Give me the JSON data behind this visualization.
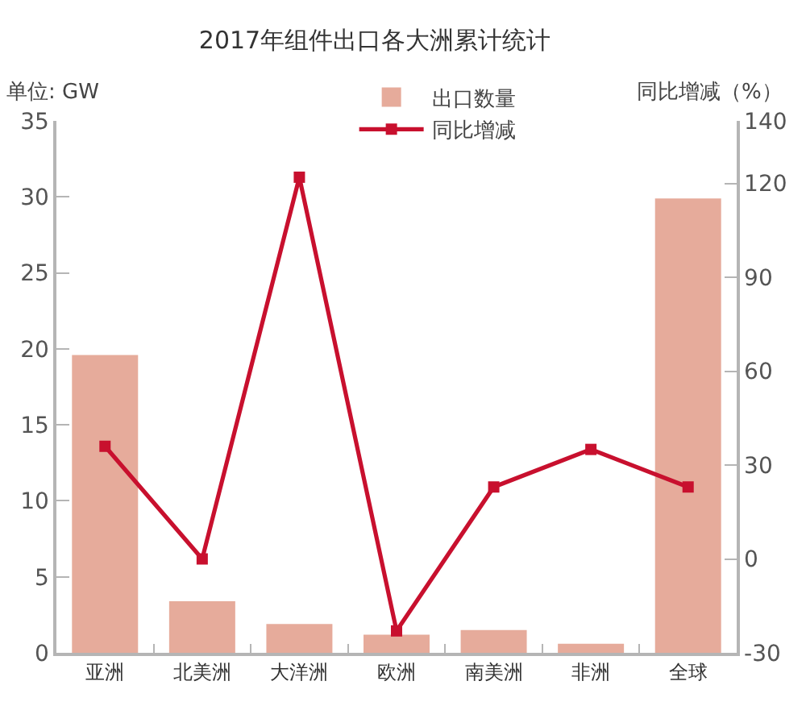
{
  "chart_data": {
    "type": "bar",
    "title": "2017年组件出口各大洲累计统计",
    "ylabel": "单位: GW",
    "y2label": "同比增减（%）",
    "categories": [
      "亚洲",
      "北美洲",
      "大洋洲",
      "欧洲",
      "南美洲",
      "非洲",
      "全球"
    ],
    "series": [
      {
        "name": "出口数量",
        "color": "#e6ab9b",
        "values": [
          19.6,
          3.4,
          1.9,
          1.2,
          1.5,
          0.6,
          29.9
        ]
      },
      {
        "name": "同比增减",
        "type": "line",
        "axis": "y2",
        "color": "#c8102e",
        "values": [
          36,
          0,
          122,
          -23,
          23,
          35,
          23
        ]
      }
    ],
    "ylim": [
      0,
      35
    ],
    "yticks": [
      0,
      5,
      10,
      15,
      20,
      25,
      30,
      35
    ],
    "y2lim": [
      -30,
      140
    ],
    "y2ticks": [
      -30,
      0,
      30,
      60,
      90,
      120,
      140
    ],
    "marker": "square",
    "line_style": "solid",
    "legend": "top"
  }
}
